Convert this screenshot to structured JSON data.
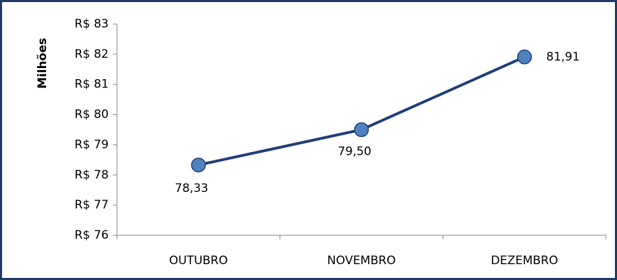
{
  "chart_data": {
    "type": "line",
    "y_label": "Milhões",
    "categories": [
      "OUTUBRO",
      "NOVEMBRO",
      "DEZEMBRO"
    ],
    "series": [
      {
        "name": "Milhões",
        "color": "#1f3f7a",
        "marker_color": "#4f81bd",
        "values": [
          78.33,
          79.5,
          81.91
        ],
        "value_labels": [
          "78,33",
          "79,50",
          "81,91"
        ]
      }
    ],
    "ylim": [
      76,
      83
    ],
    "yticks": [
      {
        "value": 76,
        "label": "R$ 76"
      },
      {
        "value": 77,
        "label": "R$ 77"
      },
      {
        "value": 78,
        "label": "R$ 78"
      },
      {
        "value": 79,
        "label": "R$ 79"
      },
      {
        "value": 80,
        "label": "R$ 80"
      },
      {
        "value": 81,
        "label": "R$ 81"
      },
      {
        "value": 82,
        "label": "R$ 82"
      },
      {
        "value": 83,
        "label": "R$ 83"
      }
    ]
  }
}
